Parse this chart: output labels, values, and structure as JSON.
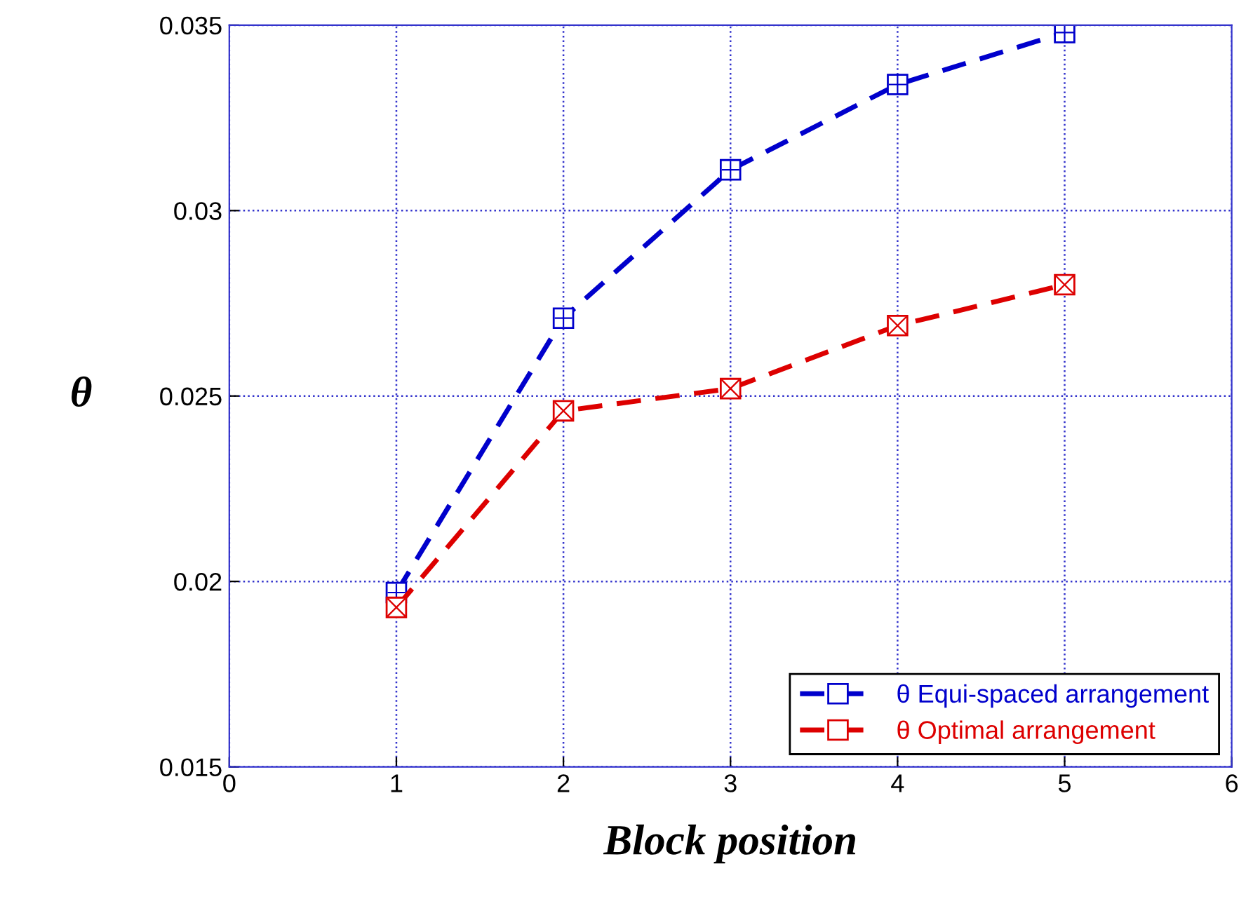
{
  "chart_data": {
    "type": "line",
    "xlabel": "Block position",
    "ylabel": "θ",
    "x": [
      1,
      2,
      3,
      4,
      5
    ],
    "series": [
      {
        "name": "θ Equi-spaced arrangement",
        "color": "#0000cc",
        "values": [
          0.0197,
          0.0271,
          0.0311,
          0.0334,
          0.0348
        ]
      },
      {
        "name": "θ Optimal arrangement",
        "color": "#dd0000",
        "values": [
          0.0193,
          0.0246,
          0.0252,
          0.0269,
          0.028
        ]
      }
    ],
    "xlim": [
      0,
      6
    ],
    "xticks": [
      0,
      1,
      2,
      3,
      4,
      5,
      6
    ],
    "ylim": [
      0.015,
      0.035
    ],
    "yticks": [
      0.015,
      0.02,
      0.025,
      0.03,
      0.035
    ],
    "grid": true,
    "legend": "bottom right",
    "marker": "square",
    "line_style": "dashed"
  }
}
